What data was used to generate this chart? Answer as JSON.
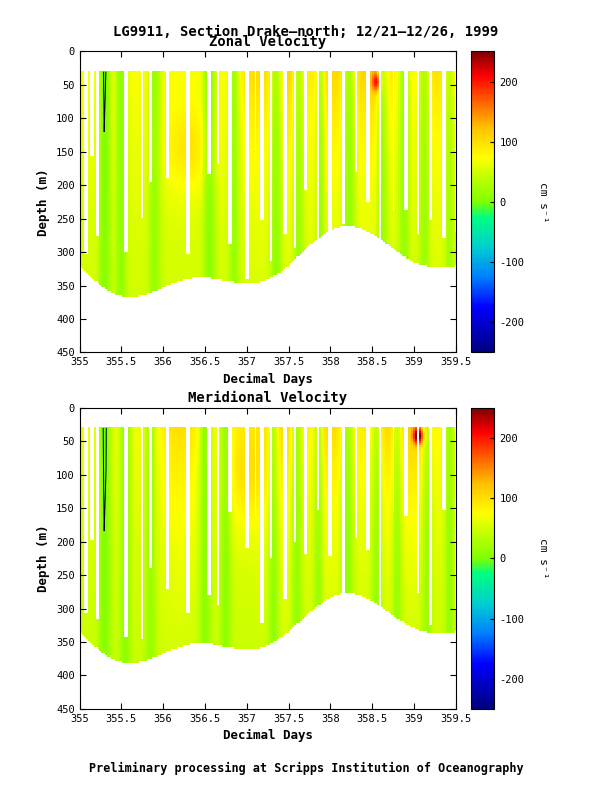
{
  "title": "LG9911, Section Drake–north; 12/21–12/26, 1999",
  "subplot1_title": "Zonal Velocity",
  "subplot2_title": "Meridional Velocity",
  "xlabel": "Decimal Days",
  "ylabel": "Depth (m)",
  "colorbar_label": "cm s⁻¹",
  "colorbar_ticks": [
    200,
    100,
    0,
    -100,
    -200
  ],
  "x_ticks": [
    355,
    355.5,
    356,
    356.5,
    357,
    357.5,
    358,
    358.5,
    359,
    359.5
  ],
  "x_tick_labels": [
    "355",
    "355.5",
    "356",
    "356.5",
    "357",
    "357.5",
    "358",
    "358.5",
    "359",
    "359.5"
  ],
  "y_ticks": [
    0,
    50,
    100,
    150,
    200,
    250,
    300,
    350,
    400,
    450
  ],
  "xlim": [
    355.0,
    359.5
  ],
  "ylim": [
    450,
    0
  ],
  "vmin": -250,
  "vmax": 250,
  "footer": "Preliminary processing at Scripps Institution of Oceanography",
  "background_color": "#ffffff",
  "contour_color": "black",
  "contour_levels": [
    0
  ],
  "fig_width": 6.12,
  "fig_height": 7.92,
  "colormap_nodes": [
    [
      0.0,
      "#00007F"
    ],
    [
      0.15,
      "#0000FF"
    ],
    [
      0.25,
      "#007FFF"
    ],
    [
      0.35,
      "#00CFCF"
    ],
    [
      0.45,
      "#00FF80"
    ],
    [
      0.5,
      "#7FFF00"
    ],
    [
      0.58,
      "#BFFF00"
    ],
    [
      0.65,
      "#FFFF00"
    ],
    [
      0.75,
      "#FFBF00"
    ],
    [
      0.85,
      "#FF5000"
    ],
    [
      0.92,
      "#FF0000"
    ],
    [
      1.0,
      "#7F0000"
    ]
  ]
}
